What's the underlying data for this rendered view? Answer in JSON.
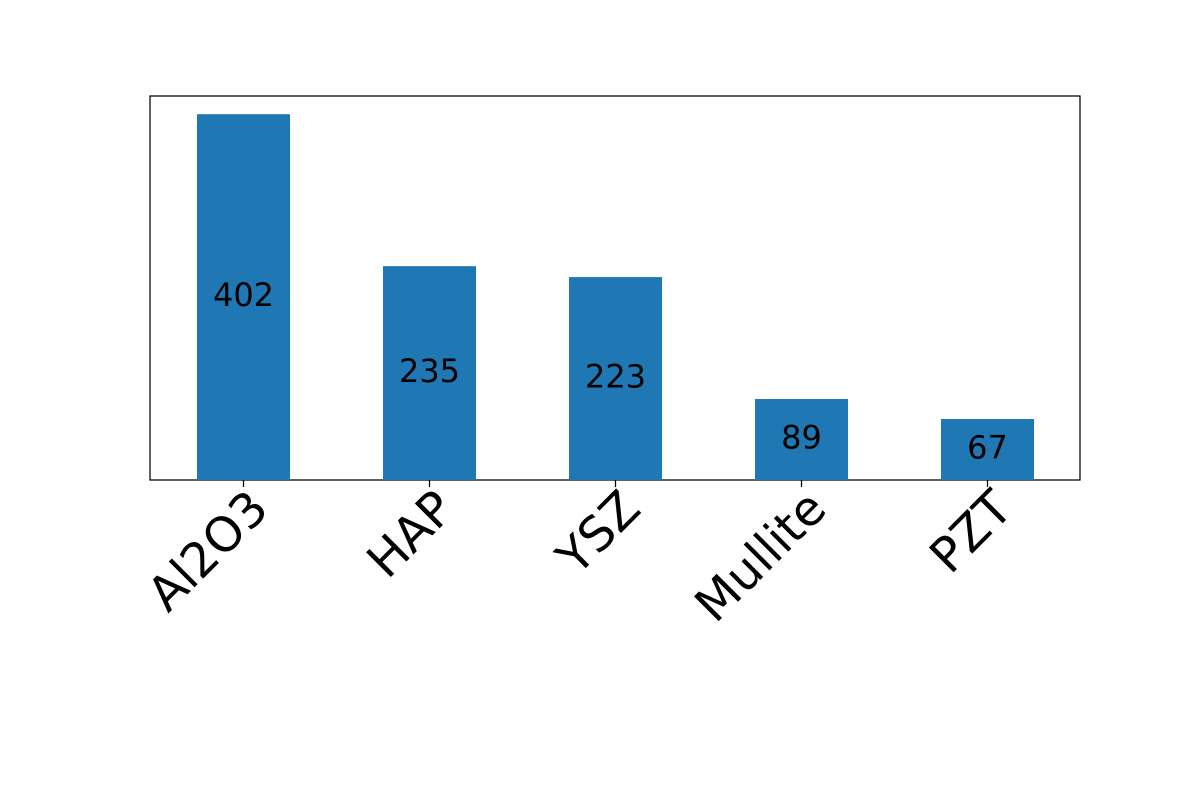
{
  "chart_data": {
    "type": "bar",
    "title": "",
    "xlabel": "",
    "ylabel": "",
    "categories": [
      "Al2O3",
      "HAP",
      "YSZ",
      "Mullite",
      "PZT"
    ],
    "values": [
      402,
      235,
      223,
      89,
      67
    ],
    "ylim": [
      0,
      422
    ],
    "grid": false,
    "legend": "none",
    "bar_color": "#1f77b4",
    "data_labels": true,
    "y_ticks_visible": false
  }
}
